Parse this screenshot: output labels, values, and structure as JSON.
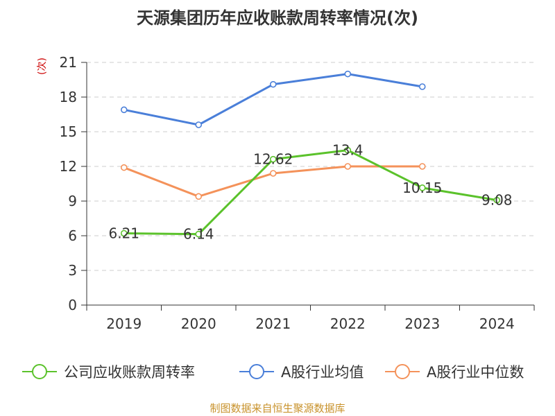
{
  "chart_data": {
    "type": "line",
    "title": "天源集团历年应收账款周转率情况(次)",
    "unit_label": "(次)",
    "categories": [
      "2019",
      "2020",
      "2021",
      "2022",
      "2023",
      "2024"
    ],
    "ylim": [
      0,
      21
    ],
    "yticks": [
      "0",
      "3",
      "6",
      "9",
      "12",
      "15",
      "18",
      "21"
    ],
    "grid": true,
    "legend_position": "bottom",
    "series": [
      {
        "name": "公司应收账款周转率",
        "color": "#5bc22b",
        "values": [
          6.21,
          6.14,
          12.62,
          13.4,
          10.15,
          9.08
        ],
        "data_labels": [
          "6.21",
          "6.14",
          "12.62",
          "13.4",
          "10.15",
          "9.08"
        ]
      },
      {
        "name": "A股行业均值",
        "color": "#4a7fd9",
        "values": [
          16.9,
          15.6,
          19.1,
          20.0,
          18.9,
          null
        ]
      },
      {
        "name": "A股行业中位数",
        "color": "#f4925a",
        "values": [
          11.9,
          9.4,
          11.4,
          12.0,
          12.0,
          null
        ]
      }
    ]
  },
  "footer": {
    "source": "制图数据来自恒生聚源数据库"
  }
}
